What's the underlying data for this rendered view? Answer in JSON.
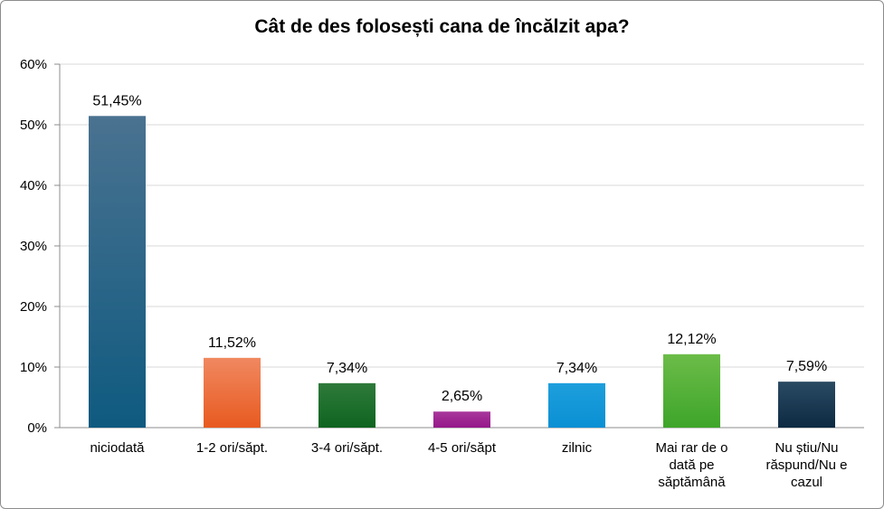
{
  "chart_data": {
    "type": "bar",
    "title": "Cât de des folosești cana de încălzit apa?",
    "xlabel": "",
    "ylabel": "",
    "ylim": [
      0,
      60
    ],
    "y_ticks": [
      "0%",
      "10%",
      "20%",
      "30%",
      "40%",
      "50%",
      "60%"
    ],
    "grid": true,
    "legend": "none",
    "categories": [
      "niciodată",
      "1-2 ori/săpt.",
      "3-4 ori/săpt.",
      "4-5 ori/săpt",
      "zilnic",
      "Mai rar de o dată pe săptămână",
      "Nu știu/Nu răspund/Nu e cazul"
    ],
    "category_lines": [
      [
        "niciodată"
      ],
      [
        "1-2 ori/săpt."
      ],
      [
        "3-4 ori/săpt."
      ],
      [
        "4-5 ori/săpt"
      ],
      [
        "zilnic"
      ],
      [
        "Mai rar de o",
        "dată pe",
        "săptămână"
      ],
      [
        "Nu știu/Nu",
        "răspund/Nu e",
        "cazul"
      ]
    ],
    "values": [
      51.45,
      11.52,
      7.34,
      2.65,
      7.34,
      12.12,
      7.59
    ],
    "data_labels": [
      "51,45%",
      "11,52%",
      "7,34%",
      "2,65%",
      "7,34%",
      "12,12%",
      "7,59%"
    ],
    "bar_colors": [
      [
        "#4a7290",
        "#0f5a80"
      ],
      [
        "#f08860",
        "#e85a20"
      ],
      [
        "#2f7a3a",
        "#0e6420"
      ],
      [
        "#a8379b",
        "#94188a"
      ],
      [
        "#1e9fdc",
        "#0a90d4"
      ],
      [
        "#6cbc48",
        "#3ea52a"
      ],
      [
        "#2a4a63",
        "#0d2a42"
      ]
    ]
  }
}
